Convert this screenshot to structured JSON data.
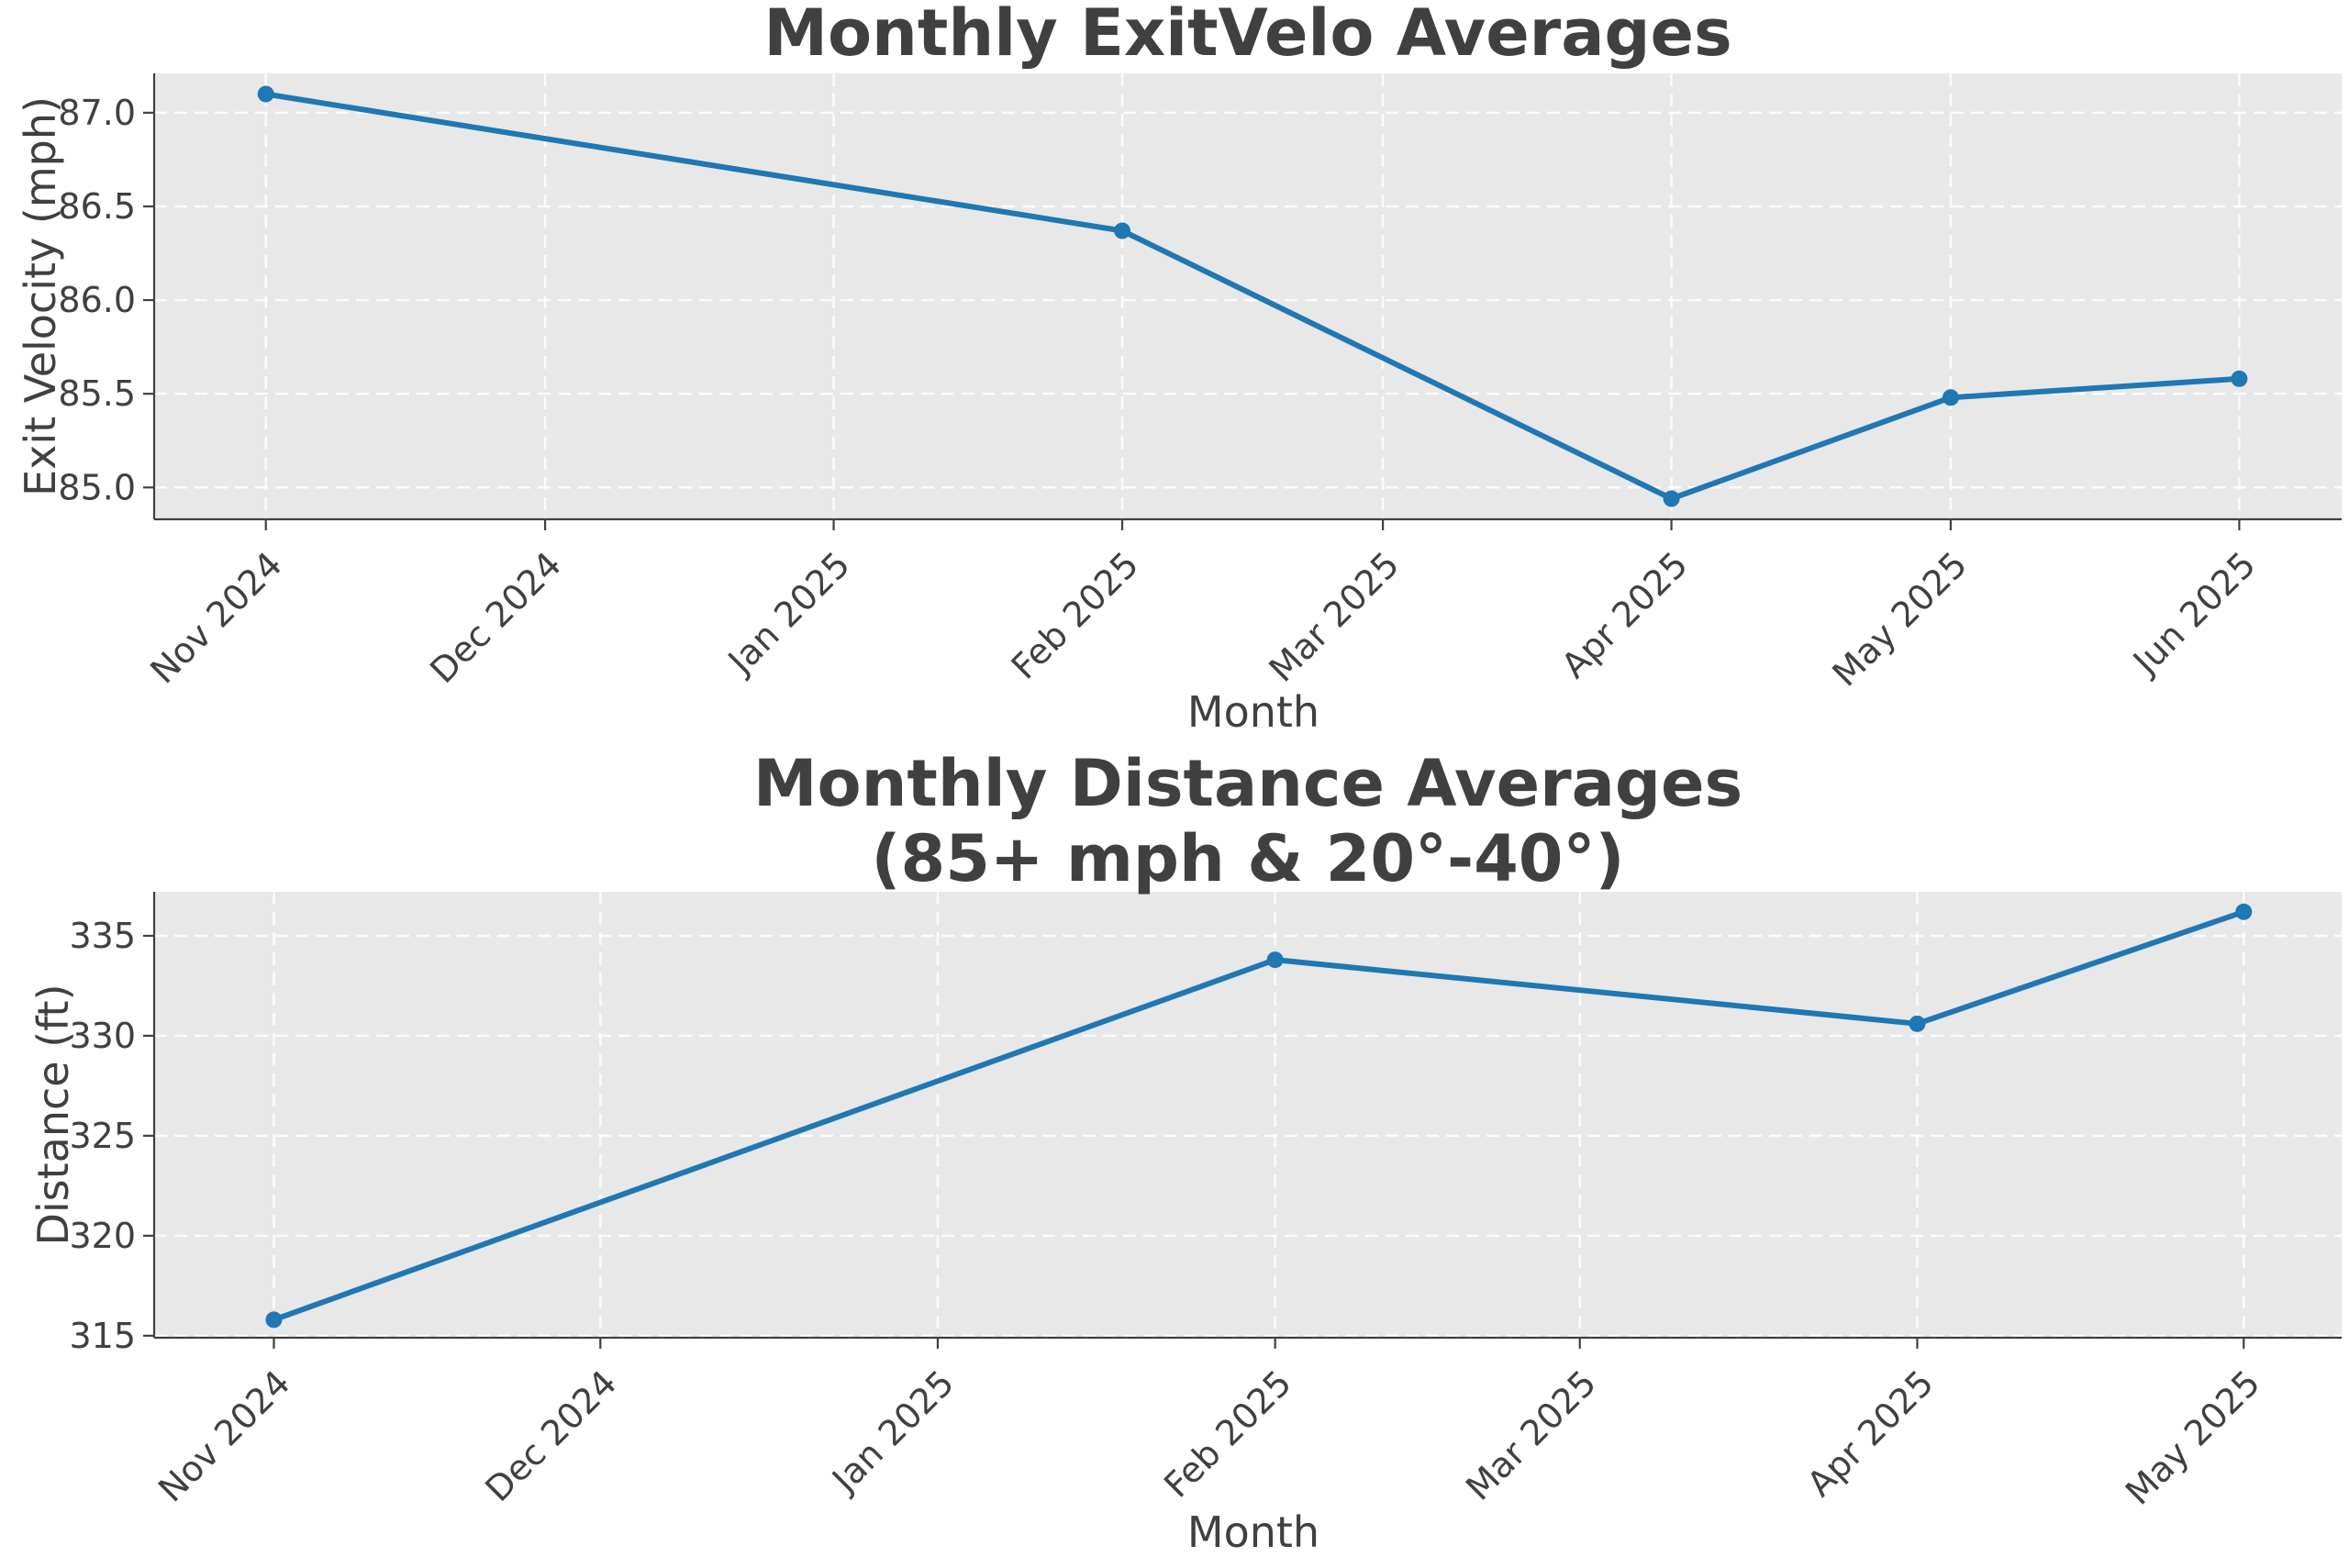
{
  "chart_data": [
    {
      "type": "line",
      "title": [
        "Monthly ExitVelo Averages"
      ],
      "xlabel": "Month",
      "ylabel": "Exit Velocity (mph)",
      "x": [
        "2024-11-01",
        "2025-02-01",
        "2025-04-01",
        "2025-05-01",
        "2025-06-01"
      ],
      "series": [
        {
          "values": [
            87.1,
            86.37,
            84.94,
            85.48,
            85.58
          ]
        }
      ],
      "x_ticks": [
        "2024-11-01",
        "2024-12-01",
        "2025-01-01",
        "2025-02-01",
        "2025-03-01",
        "2025-04-01",
        "2025-05-01",
        "2025-06-01"
      ],
      "x_tick_labels": [
        "Nov 2024",
        "Dec 2024",
        "Jan 2025",
        "Feb 2025",
        "Mar 2025",
        "Apr 2025",
        "May 2025",
        "Jun 2025"
      ],
      "xlim": [
        "2024-10-20",
        "2025-06-12"
      ],
      "y_ticks": [
        85.0,
        85.5,
        86.0,
        86.5,
        87.0
      ],
      "y_tick_labels": [
        "85.0",
        "85.5",
        "86.0",
        "86.5",
        "87.0"
      ],
      "ylim": [
        84.83,
        87.21
      ],
      "grid": true,
      "color": "#1f77b4",
      "background": "#e8e8e8"
    },
    {
      "type": "line",
      "title": [
        "Monthly Distance Averages",
        "(85+ mph & 20°-40°)"
      ],
      "xlabel": "Month",
      "ylabel": "Distance (ft)",
      "x": [
        "2024-11-01",
        "2025-02-01",
        "2025-04-01",
        "2025-05-01"
      ],
      "series": [
        {
          "values": [
            315.8,
            333.8,
            330.6,
            336.2
          ]
        }
      ],
      "x_ticks": [
        "2024-11-01",
        "2024-12-01",
        "2025-01-01",
        "2025-02-01",
        "2025-03-01",
        "2025-04-01",
        "2025-05-01"
      ],
      "x_tick_labels": [
        "Nov 2024",
        "Dec 2024",
        "Jan 2025",
        "Feb 2025",
        "Mar 2025",
        "Apr 2025",
        "May 2025"
      ],
      "xlim": [
        "2024-10-21",
        "2025-05-10"
      ],
      "y_ticks": [
        315,
        320,
        325,
        330,
        335
      ],
      "y_tick_labels": [
        "315",
        "320",
        "325",
        "330",
        "335"
      ],
      "ylim": [
        314.9,
        337.2
      ],
      "grid": true,
      "color": "#1f77b4",
      "background": "#e8e8e8"
    }
  ]
}
